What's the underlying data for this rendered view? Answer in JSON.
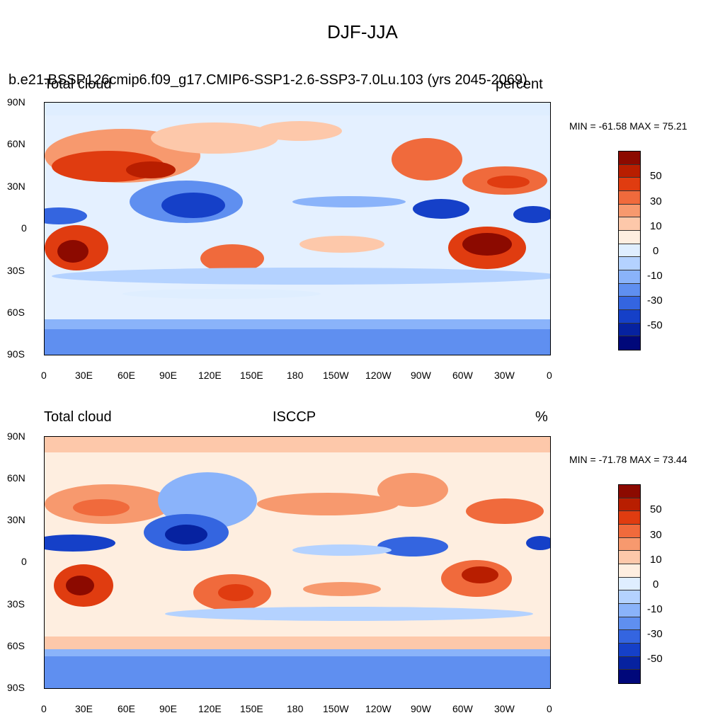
{
  "figure": {
    "title": "DJF-JJA"
  },
  "panels": [
    {
      "id": "top",
      "left_title": "Total cloud",
      "center_title": "b.e21.BSSP126cmip6.f09_g17.CMIP6-SSP1-2.6-SSP3-7.0Lu.103 (yrs 2045-2069)",
      "right_title": "percent",
      "min_max": "MIN = -61.58 MAX =  75.21"
    },
    {
      "id": "bottom",
      "left_title": "Total cloud",
      "center_title": "ISCCP",
      "right_title": "%",
      "min_max": "MIN = -71.78 MAX =  73.44"
    }
  ],
  "axes": {
    "lat_labels": [
      "90N",
      "60N",
      "30N",
      "0",
      "30S",
      "60S",
      "90S"
    ],
    "lon_labels": [
      "0",
      "30E",
      "60E",
      "90E",
      "120E",
      "150E",
      "180",
      "150W",
      "120W",
      "90W",
      "60W",
      "30W",
      "0"
    ]
  },
  "colorbar": {
    "labels": [
      "50",
      "30",
      "10",
      "0",
      "-10",
      "-30",
      "-50"
    ],
    "colors": [
      "#8c0a00",
      "#b81e00",
      "#e03c10",
      "#f06a3c",
      "#f7996e",
      "#fdc8aa",
      "#feeee0",
      "#dfeeff",
      "#b4d2ff",
      "#8ab3fa",
      "#5f8ff0",
      "#3465e0",
      "#1540c8",
      "#0622a0",
      "#00087a"
    ]
  }
}
